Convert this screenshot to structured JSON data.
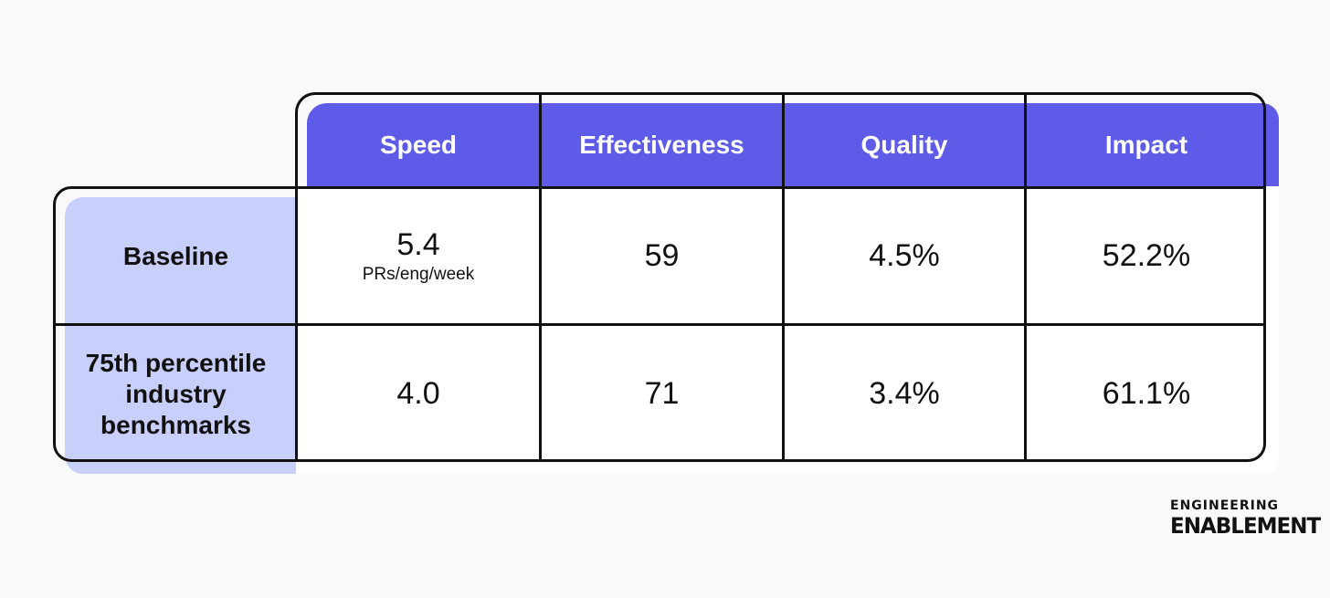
{
  "chart_data": {
    "type": "table",
    "columns": [
      "Speed",
      "Effectiveness",
      "Quality",
      "Impact"
    ],
    "rows": [
      {
        "label": "Baseline",
        "values": [
          "5.4",
          "59",
          "4.5%",
          "52.2%"
        ],
        "speed_unit": "PRs/eng/week"
      },
      {
        "label_lines": [
          "75th percentile",
          "industry",
          "benchmarks"
        ],
        "values": [
          "4.0",
          "71",
          "3.4%",
          "61.1%"
        ]
      }
    ]
  },
  "colors": {
    "header_bg": "#5e5be8",
    "row_label_bg": "#c9cffb",
    "outline": "#111111"
  },
  "logo": {
    "line1": "ENGINEERING",
    "line2": "ENABLEMENT"
  }
}
